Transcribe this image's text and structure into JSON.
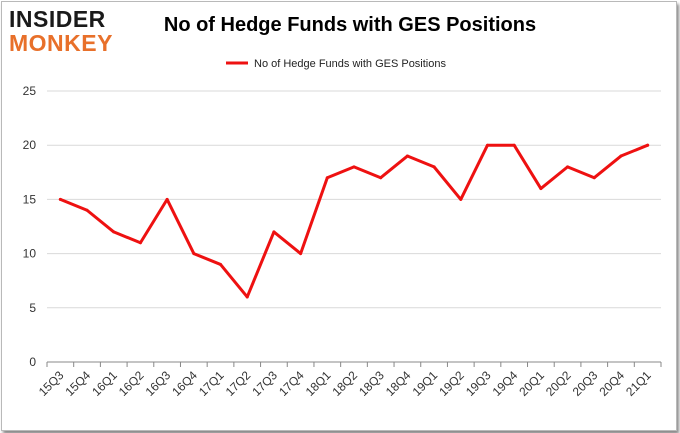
{
  "brand": {
    "logo_top": "INSIDER",
    "logo_bottom": "MONKEY"
  },
  "chart_data": {
    "type": "line",
    "title": "No of Hedge Funds with GES Positions",
    "categories": [
      "15Q3",
      "15Q4",
      "16Q1",
      "16Q2",
      "16Q3",
      "16Q4",
      "17Q1",
      "17Q2",
      "17Q3",
      "17Q4",
      "18Q1",
      "18Q2",
      "18Q3",
      "18Q4",
      "19Q1",
      "19Q2",
      "19Q3",
      "19Q4",
      "20Q1",
      "20Q2",
      "20Q3",
      "20Q4",
      "21Q1"
    ],
    "series": [
      {
        "name": "No of Hedge Funds with GES Positions",
        "values": [
          15,
          14,
          12,
          11,
          15,
          10,
          9,
          6,
          12,
          10,
          17,
          18,
          17,
          19,
          18,
          15,
          20,
          20,
          16,
          18,
          17,
          19,
          20
        ],
        "color": "#ee1111"
      }
    ],
    "ylim": [
      0,
      25
    ],
    "yticks": [
      0,
      5,
      10,
      15,
      20,
      25
    ],
    "xlabel": "",
    "ylabel": "",
    "grid": true,
    "legend_position": "top-center"
  }
}
